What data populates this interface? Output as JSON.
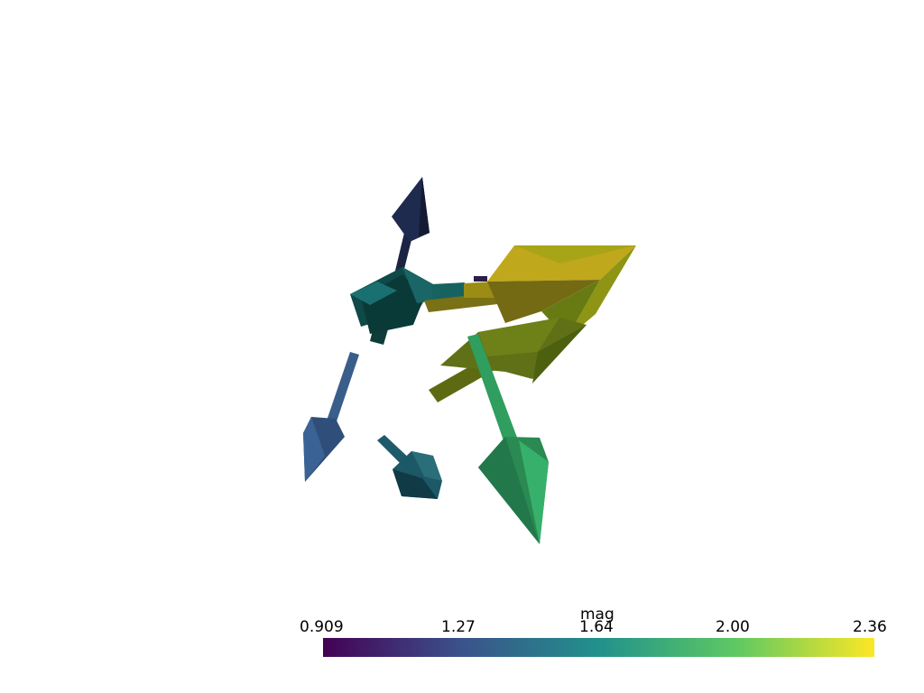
{
  "scalar_bar": {
    "title": "mag",
    "ticks": [
      "0.909",
      "1.27",
      "1.64",
      "2.00",
      "2.36"
    ],
    "colormap": [
      "#440154",
      "#3b528b",
      "#21918c",
      "#5ec962",
      "#fde725"
    ]
  },
  "glyphs": [
    {
      "name": "arrow-navy-up",
      "color": "#1a2342"
    },
    {
      "name": "arrow-teal-cluster",
      "color": "#0f4a48"
    },
    {
      "name": "arrow-blue-down-left",
      "color": "#3b5e8c"
    },
    {
      "name": "arrow-teal-down",
      "color": "#1f5a68"
    },
    {
      "name": "arrow-green-down",
      "color": "#2fa260"
    },
    {
      "name": "arrow-yellow-large",
      "color": "#b5a31c"
    },
    {
      "name": "arrow-olive-right",
      "color": "#8a9216"
    },
    {
      "name": "arrow-olive-lower",
      "color": "#6f7e14"
    }
  ]
}
